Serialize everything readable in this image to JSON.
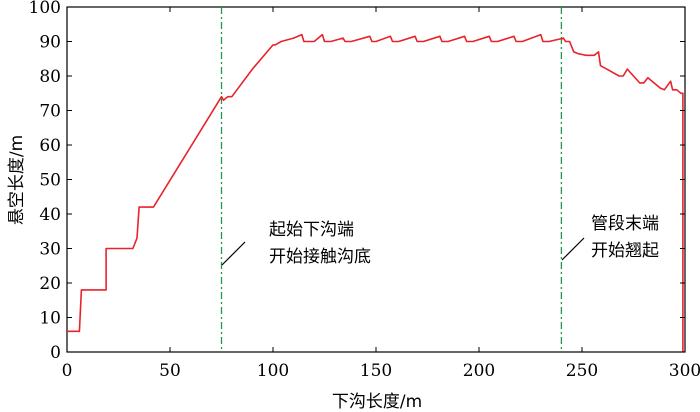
{
  "chart_data": {
    "type": "line",
    "title": "",
    "xlabel": "下沟长度/m",
    "ylabel": "悬空长度/m",
    "xlim": [
      0,
      300
    ],
    "ylim": [
      0,
      100
    ],
    "x_ticks": [
      "0",
      "50",
      "100",
      "150",
      "200",
      "250",
      "300"
    ],
    "y_ticks": [
      "0",
      "10",
      "20",
      "30",
      "40",
      "50",
      "60",
      "70",
      "80",
      "90",
      "100"
    ],
    "grid": false,
    "legend": "none",
    "colors": {
      "series": "#e8232a",
      "vline": "#1e9a4b"
    },
    "series": [
      {
        "x": [
          0,
          6,
          7,
          19,
          19,
          32,
          34,
          35,
          42,
          75,
          76,
          78,
          80,
          90,
          100,
          101,
          104,
          110,
          114,
          115,
          120,
          124,
          125,
          128,
          134,
          135,
          138,
          147,
          148,
          150,
          157,
          158,
          161,
          169,
          170,
          173,
          181,
          182,
          185,
          193,
          194,
          197,
          205,
          206,
          209,
          217,
          218,
          221,
          230,
          231,
          234,
          241,
          242,
          244,
          245,
          246,
          248,
          252,
          256,
          258,
          259,
          262,
          268,
          270,
          272,
          278,
          280,
          282,
          288,
          290,
          293,
          294,
          296,
          298,
          299,
          299
        ],
        "y": [
          6,
          6,
          18,
          18,
          30,
          30,
          33,
          42,
          42,
          74,
          73,
          74,
          74,
          82,
          89,
          89,
          90,
          91,
          92,
          90,
          90,
          92,
          90,
          90,
          91,
          90,
          90,
          91.5,
          90,
          90,
          91.5,
          90,
          90,
          91.5,
          90,
          90,
          91.5,
          90,
          90,
          91.5,
          90,
          90,
          91.5,
          90,
          90,
          91.5,
          90,
          90,
          92,
          90,
          90,
          91,
          90,
          90,
          88.5,
          87,
          86.5,
          86,
          86,
          87,
          83,
          82,
          80,
          80,
          82,
          78,
          78,
          79.5,
          76.5,
          76,
          78.5,
          76,
          76,
          75,
          75,
          0
        ]
      }
    ],
    "vlines": [
      75,
      240
    ],
    "annotations": [
      {
        "lines": [
          "起始下沟端",
          "开始接触沟底"
        ]
      },
      {
        "lines": [
          "管段末端",
          "开始翘起"
        ]
      }
    ]
  }
}
